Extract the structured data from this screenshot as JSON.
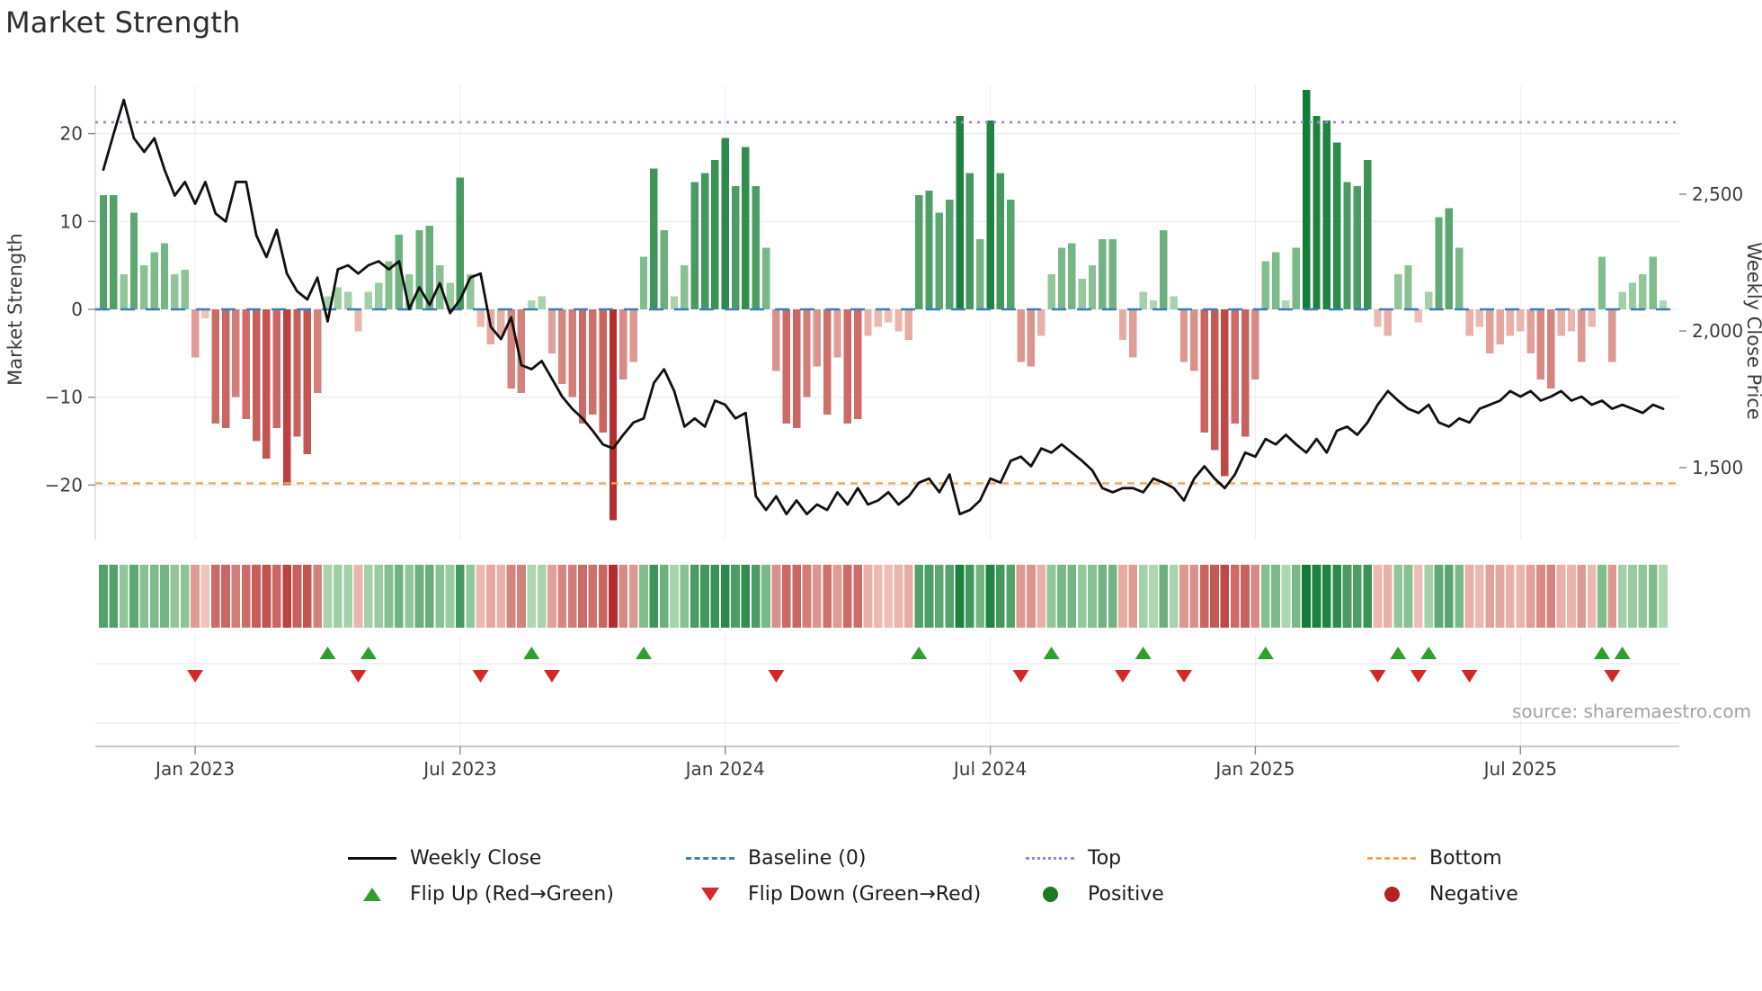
{
  "title": "Market Strength",
  "source": "source: sharemaestro.com",
  "chart_data": {
    "type": "bar",
    "subtype": "weekly bar + line combo with heatmap strip and flip markers",
    "title": "Market Strength",
    "left_axis": {
      "label": "Market Strength",
      "ticks": [
        "20",
        "10",
        "0",
        "−10",
        "−20"
      ],
      "tick_values": [
        20,
        10,
        0,
        -10,
        -20
      ],
      "ylim": [
        -26,
        25.5
      ]
    },
    "right_axis": {
      "label": "Weekly Close Price",
      "ticks": [
        "2,500",
        "2,000",
        "1,500"
      ],
      "tick_values": [
        2500,
        2000,
        1500
      ],
      "ylim": [
        1240,
        2900
      ]
    },
    "x_tick_labels": [
      "Jan 2023",
      "Jul 2023",
      "Jan 2024",
      "Jul 2024",
      "Jan 2025",
      "Jul 2025"
    ],
    "x_tick_weeks": [
      9,
      35,
      61,
      87,
      113,
      139
    ],
    "baseline": 0,
    "top_line": 21.3,
    "bottom_line": -19.8,
    "grid": true,
    "legend_position": "bottom",
    "series": [
      {
        "name": "Market Strength",
        "type": "bar",
        "axis": "left",
        "values": [
          13,
          13,
          4,
          11,
          5,
          6.5,
          7.5,
          4,
          4.5,
          -5.5,
          -1,
          -13,
          -13.5,
          -10,
          -12.5,
          -15,
          -17,
          -13.5,
          -20,
          -14.5,
          -16.5,
          -9.5,
          1.5,
          2.5,
          2,
          -2.5,
          2,
          3,
          5.5,
          8.5,
          4,
          9,
          9.5,
          5,
          3,
          15,
          4,
          -2,
          -4,
          -3,
          -9,
          -9.5,
          1,
          1.5,
          -5,
          -8.5,
          -10,
          -13,
          -12,
          -14,
          -24,
          -8,
          -6,
          6,
          16,
          9,
          1.5,
          5,
          14.5,
          15.5,
          17,
          19.5,
          14,
          18.5,
          14,
          7,
          -7,
          -13,
          -13.5,
          -10,
          -6.5,
          -12,
          -5.5,
          -13,
          -12.5,
          -3,
          -2,
          -1.5,
          -2.5,
          -3.5,
          13,
          13.5,
          11,
          12.5,
          22,
          15.5,
          8,
          21.5,
          15.5,
          12.5,
          -6,
          -6.5,
          -3,
          4,
          7,
          7.5,
          3.5,
          5,
          8,
          8,
          -3.5,
          -5.5,
          2,
          1,
          9,
          1.5,
          -6,
          -7,
          -14,
          -16,
          -19,
          -13,
          -14.5,
          -8,
          5.5,
          6.5,
          1,
          7,
          25,
          22,
          21.5,
          19,
          14.5,
          14,
          17,
          -2,
          -3,
          4,
          5,
          -1.5,
          2,
          10.5,
          11.5,
          7,
          -3,
          -2,
          -5,
          -4,
          -3,
          -2.5,
          -5,
          -8,
          -9,
          -3,
          -2.5,
          -6,
          -2,
          6,
          -6,
          2,
          3,
          4,
          6,
          1
        ]
      },
      {
        "name": "Weekly Close",
        "type": "line",
        "axis": "right",
        "values": [
          2590,
          2720,
          2845,
          2705,
          2655,
          2705,
          2590,
          2495,
          2545,
          2465,
          2545,
          2430,
          2400,
          2545,
          2545,
          2350,
          2270,
          2370,
          2210,
          2145,
          2115,
          2195,
          2035,
          2225,
          2240,
          2210,
          2240,
          2255,
          2225,
          2255,
          2080,
          2160,
          2095,
          2175,
          2065,
          2115,
          2195,
          2210,
          2015,
          1970,
          2050,
          1875,
          1860,
          1890,
          1825,
          1760,
          1715,
          1680,
          1635,
          1585,
          1570,
          1620,
          1665,
          1680,
          1810,
          1860,
          1780,
          1650,
          1680,
          1650,
          1745,
          1730,
          1680,
          1700,
          1395,
          1345,
          1395,
          1330,
          1380,
          1330,
          1365,
          1345,
          1410,
          1365,
          1425,
          1365,
          1380,
          1410,
          1365,
          1395,
          1445,
          1460,
          1410,
          1475,
          1330,
          1345,
          1380,
          1460,
          1445,
          1525,
          1540,
          1505,
          1570,
          1555,
          1585,
          1555,
          1525,
          1490,
          1425,
          1410,
          1425,
          1425,
          1410,
          1460,
          1445,
          1425,
          1380,
          1460,
          1505,
          1460,
          1425,
          1475,
          1555,
          1540,
          1605,
          1585,
          1620,
          1585,
          1555,
          1605,
          1555,
          1635,
          1650,
          1620,
          1665,
          1730,
          1780,
          1745,
          1715,
          1700,
          1730,
          1665,
          1650,
          1680,
          1665,
          1715,
          1730,
          1745,
          1780,
          1760,
          1780,
          1745,
          1760,
          1780,
          1745,
          1760,
          1730,
          1745,
          1715,
          1730,
          1715,
          1700,
          1730,
          1715
        ]
      }
    ],
    "heatmap_strip": "weekly strength values repeated as color strip",
    "flip_up_weeks": [
      22,
      26,
      42,
      53,
      80,
      93,
      102,
      114,
      127,
      130,
      147,
      149
    ],
    "flip_down_weeks": [
      9,
      25,
      37,
      44,
      66,
      90,
      100,
      106,
      125,
      129,
      134,
      148
    ],
    "colors": {
      "line": "#111111",
      "baseline": "#3b7fb5",
      "top": "#9d82d6",
      "bottom": "#f2a65a",
      "flip_up": "#2ca02c",
      "flip_down": "#d62728",
      "pos_dark": "#127c38",
      "pos_light": "#bce0bc",
      "neg_dark": "#b22d2d",
      "neg_light": "#f6d3c9",
      "grid": "#e7e7e7"
    }
  },
  "legend": {
    "rows": [
      [
        {
          "label": "Weekly Close",
          "swatch": "line",
          "style": "solid",
          "color": "#111111",
          "icon": "solid-line-swatch-icon"
        },
        {
          "label": "Baseline (0)",
          "swatch": "line",
          "style": "dashed",
          "color": "#3b7fb5",
          "icon": "dashed-line-swatch-icon"
        },
        {
          "label": "Top",
          "swatch": "line",
          "style": "dotted",
          "color": "#9d82d6",
          "icon": "dotted-line-swatch-icon"
        },
        {
          "label": "Bottom",
          "swatch": "line",
          "style": "dashed",
          "color": "#f2a65a",
          "icon": "dashed-line-swatch-icon"
        }
      ],
      [
        {
          "label": "Flip Up (Red→Green)",
          "swatch": "triangle-up",
          "color": "#2ca02c",
          "icon": "triangle-up-icon"
        },
        {
          "label": "Flip Down (Green→Red)",
          "swatch": "triangle-down",
          "color": "#d62728",
          "icon": "triangle-down-icon"
        },
        {
          "label": "Positive",
          "swatch": "circle",
          "color": "#1f7a24",
          "icon": "positive-circle-icon"
        },
        {
          "label": "Negative",
          "swatch": "circle",
          "color": "#b22222",
          "icon": "negative-circle-icon"
        }
      ]
    ]
  }
}
